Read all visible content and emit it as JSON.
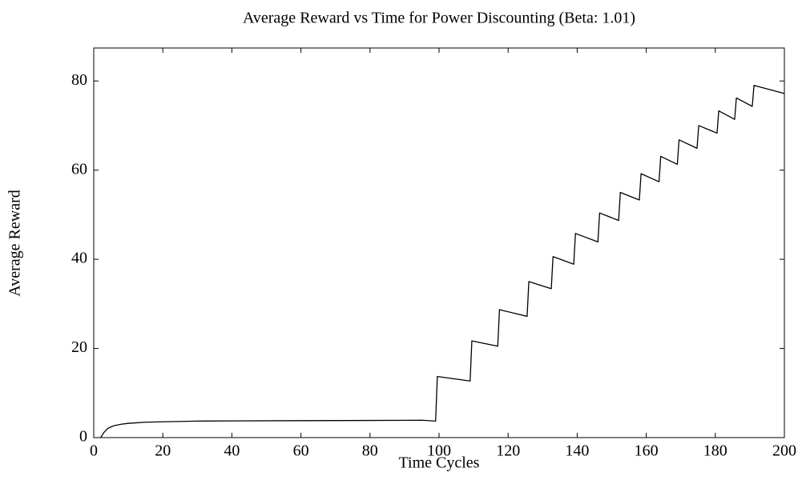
{
  "chart_data": {
    "type": "line",
    "title": "Average Reward vs Time for Power Discounting (Beta: 1.01)",
    "xlabel": "Time Cycles",
    "ylabel": "Average Reward",
    "x": [
      2,
      3,
      4,
      5,
      6,
      8,
      10,
      15,
      20,
      30,
      40,
      60,
      80,
      95,
      99,
      99.5,
      109,
      109.5,
      117,
      117.5,
      125.5,
      126,
      132.5,
      133,
      139,
      139.5,
      146,
      146.5,
      152,
      152.5,
      158,
      158.5,
      163.7,
      164.2,
      169,
      169.5,
      174.7,
      175.2,
      180.5,
      181,
      185.6,
      186.1,
      190.7,
      191.2,
      200
    ],
    "series": [
      {
        "name": "Average Reward",
        "color": "#000000",
        "values": [
          0,
          1.2,
          2,
          2.4,
          2.7,
          3.0,
          3.2,
          3.45,
          3.55,
          3.7,
          3.75,
          3.8,
          3.85,
          3.9,
          3.7,
          13.7,
          12.7,
          21.7,
          20.5,
          28.7,
          27.2,
          35,
          33.4,
          40.6,
          38.9,
          45.8,
          43.9,
          50.4,
          48.7,
          55,
          53.3,
          59.2,
          57.4,
          63.1,
          61.3,
          66.8,
          64.9,
          70,
          68.3,
          73.3,
          71.4,
          76.2,
          74.3,
          79,
          77.2
        ]
      }
    ],
    "xlim": [
      0,
      200
    ],
    "xticks": [
      0,
      20,
      40,
      60,
      80,
      100,
      120,
      140,
      160,
      180,
      200
    ],
    "ylim": [
      0,
      87.4
    ],
    "yticks": [
      0,
      20,
      40,
      60,
      80
    ],
    "grid": false
  }
}
